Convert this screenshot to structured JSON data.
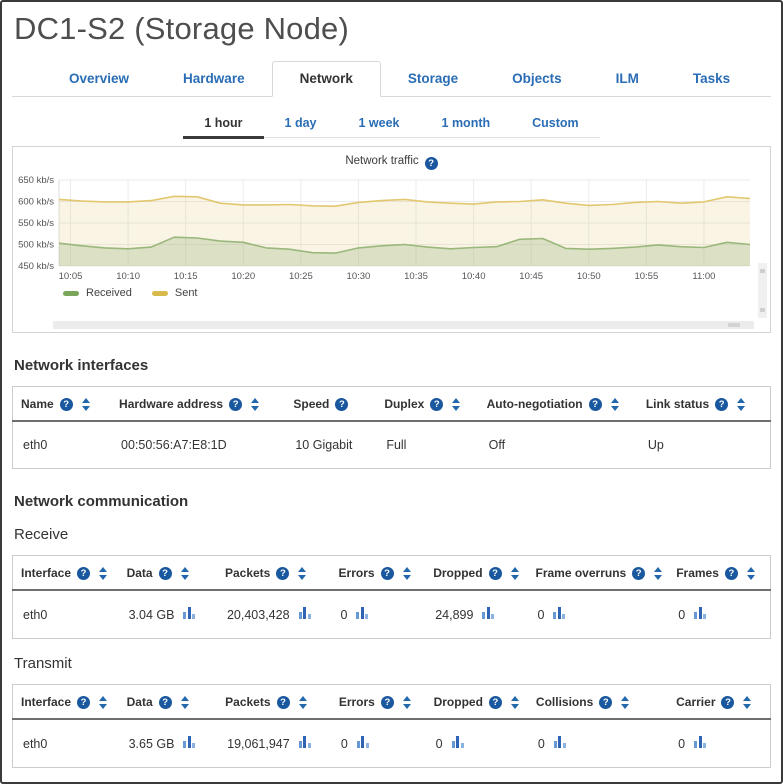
{
  "page": {
    "title": "DC1-S2 (Storage Node)"
  },
  "tabs": [
    {
      "label": "Overview",
      "active": false
    },
    {
      "label": "Hardware",
      "active": false
    },
    {
      "label": "Network",
      "active": true
    },
    {
      "label": "Storage",
      "active": false
    },
    {
      "label": "Objects",
      "active": false
    },
    {
      "label": "ILM",
      "active": false
    },
    {
      "label": "Tasks",
      "active": false
    }
  ],
  "time_range": {
    "options": [
      "1 hour",
      "1 day",
      "1 week",
      "1 month",
      "Custom"
    ],
    "active": "1 hour"
  },
  "chart_data": {
    "type": "area",
    "title": "Network traffic",
    "help_icon": "question-mark",
    "y_unit": "kb/s",
    "ylim": [
      450,
      650
    ],
    "yticks": [
      450,
      500,
      550,
      600,
      650
    ],
    "x_ticks": [
      "10:05",
      "10:10",
      "10:15",
      "10:20",
      "10:25",
      "10:30",
      "10:35",
      "10:40",
      "10:45",
      "10:50",
      "10:55",
      "11:00"
    ],
    "x": [
      "10:04",
      "10:06",
      "10:08",
      "10:10",
      "10:12",
      "10:14",
      "10:16",
      "10:18",
      "10:20",
      "10:22",
      "10:24",
      "10:26",
      "10:28",
      "10:30",
      "10:32",
      "10:34",
      "10:36",
      "10:38",
      "10:40",
      "10:42",
      "10:44",
      "10:46",
      "10:48",
      "10:50",
      "10:52",
      "10:54",
      "10:56",
      "10:58",
      "11:00",
      "11:02",
      "11:04"
    ],
    "series": [
      {
        "name": "Sent",
        "line": "#e3c76f",
        "fill": "rgba(224,196,104,0.18)",
        "swatch": "#d8b94c",
        "values": [
          605,
          601,
          599,
          599,
          602,
          612,
          611,
          596,
          592,
          592,
          593,
          590,
          589,
          598,
          602,
          605,
          599,
          596,
          594,
          599,
          600,
          604,
          596,
          591,
          593,
          598,
          600,
          596,
          599,
          611,
          607
        ]
      },
      {
        "name": "Received",
        "line": "#9ab77c",
        "fill": "rgba(148,176,117,0.28)",
        "swatch": "#79a659",
        "values": [
          503,
          497,
          492,
          490,
          494,
          517,
          515,
          508,
          505,
          492,
          489,
          481,
          480,
          492,
          497,
          500,
          494,
          490,
          493,
          495,
          512,
          514,
          491,
          489,
          491,
          494,
          499,
          495,
          493,
          505,
          500
        ]
      }
    ],
    "legend_order": [
      "Received",
      "Sent"
    ],
    "grid": true,
    "legend_position": "bottom-left"
  },
  "interfaces_table": {
    "heading": "Network interfaces",
    "columns": [
      {
        "label": "Name",
        "help": true,
        "sort": true
      },
      {
        "label": "Hardware address",
        "help": true,
        "sort": true
      },
      {
        "label": "Speed",
        "help": true,
        "sort": false
      },
      {
        "label": "Duplex",
        "help": true,
        "sort": true
      },
      {
        "label": "Auto-negotiation",
        "help": true,
        "sort": true
      },
      {
        "label": "Link status",
        "help": true,
        "sort": true
      }
    ],
    "rows": [
      [
        "eth0",
        "00:50:56:A7:E8:1D",
        "10 Gigabit",
        "Full",
        "Off",
        "Up"
      ]
    ]
  },
  "communication": {
    "heading": "Network communication",
    "tables": [
      {
        "id": "receive",
        "heading": "Receive",
        "columns": [
          {
            "label": "Interface",
            "help": true,
            "sort": true
          },
          {
            "label": "Data",
            "help": true,
            "sort": true
          },
          {
            "label": "Packets",
            "help": true,
            "sort": true
          },
          {
            "label": "Errors",
            "help": true,
            "sort": true
          },
          {
            "label": "Dropped",
            "help": true,
            "sort": true
          },
          {
            "label": "Frame overruns",
            "help": true,
            "sort": true
          },
          {
            "label": "Frames",
            "help": true,
            "sort": true
          }
        ],
        "rows": [
          [
            "eth0",
            "3.04 GB",
            "20,403,428",
            "0",
            "24,899",
            "0",
            "0"
          ]
        ]
      },
      {
        "id": "transmit",
        "heading": "Transmit",
        "columns": [
          {
            "label": "Interface",
            "help": true,
            "sort": true
          },
          {
            "label": "Data",
            "help": true,
            "sort": true
          },
          {
            "label": "Packets",
            "help": true,
            "sort": true
          },
          {
            "label": "Errors",
            "help": true,
            "sort": true
          },
          {
            "label": "Dropped",
            "help": true,
            "sort": true
          },
          {
            "label": "Collisions",
            "help": true,
            "sort": true
          },
          {
            "label": "Carrier",
            "help": true,
            "sort": true
          }
        ],
        "rows": [
          [
            "eth0",
            "3.65 GB",
            "19,061,947",
            "0",
            "0",
            "0",
            "0"
          ]
        ]
      }
    ]
  },
  "colors": {
    "link_blue": "#2a6db5",
    "icon_blue": "#19579e",
    "sort_blue": "#2268ab",
    "active_tab_text": "#333333",
    "grid_line": "#ebebeb"
  }
}
